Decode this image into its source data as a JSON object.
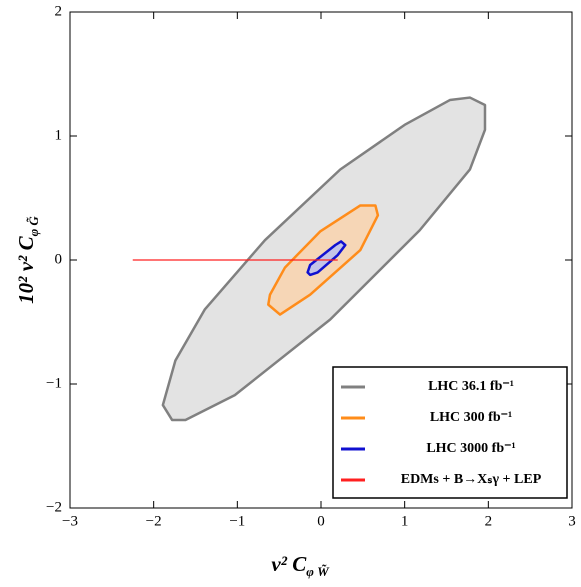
{
  "chart_data": {
    "type": "contour",
    "xlabel": {
      "main": "v² C",
      "sub": "φ W̃"
    },
    "ylabel": {
      "main": "10² v² C",
      "sub": "φ G̃"
    },
    "xlim": [
      -3,
      3
    ],
    "ylim": [
      -2,
      2
    ],
    "xticks": [
      {
        "value": -3,
        "label": "−3"
      },
      {
        "value": -2,
        "label": "−2"
      },
      {
        "value": -1,
        "label": "−1"
      },
      0,
      1,
      2,
      3
    ],
    "yticks": [
      {
        "value": -2,
        "label": "−2"
      },
      {
        "value": -1,
        "label": "−1"
      },
      0,
      1,
      2
    ],
    "legend": "lower right",
    "series": [
      {
        "name": "LHC 36.1 fb⁻¹",
        "color": "#808080",
        "fill": "#e3e3e3",
        "x": [
          -1.78,
          -1.62,
          -1.03,
          0.11,
          1.18,
          1.78,
          1.96,
          1.96,
          1.78,
          1.54,
          1.0,
          0.23,
          -0.67,
          -1.39,
          -1.74,
          -1.89
        ],
        "y": [
          -1.29,
          -1.29,
          -1.09,
          -0.48,
          0.24,
          0.73,
          1.05,
          1.25,
          1.31,
          1.29,
          1.09,
          0.73,
          0.16,
          -0.4,
          -0.81,
          -1.17
        ]
      },
      {
        "name": "LHC  300 fb⁻¹",
        "color": "#ff8c1a",
        "fill": "#f6d6b6",
        "x": [
          -0.63,
          -0.49,
          -0.13,
          0.47,
          0.68,
          0.65,
          0.47,
          -0.01,
          -0.43,
          -0.61
        ],
        "y": [
          -0.36,
          -0.44,
          -0.28,
          0.08,
          0.36,
          0.44,
          0.44,
          0.23,
          -0.06,
          -0.28
        ]
      },
      {
        "name": "LHC 3000 fb⁻¹",
        "color": "#1010d0",
        "fill": "#c4c4e8",
        "x": [
          -0.13,
          -0.04,
          0.2,
          0.29,
          0.24,
          0.17,
          -0.13,
          -0.16
        ],
        "y": [
          -0.12,
          -0.1,
          0.04,
          0.12,
          0.15,
          0.12,
          -0.04,
          -0.1
        ]
      },
      {
        "name": "EDMs + B→Xₛγ + LEP",
        "color": "#ff2020",
        "x": [
          -2.25,
          0.2
        ],
        "y": [
          0,
          0
        ]
      }
    ]
  }
}
